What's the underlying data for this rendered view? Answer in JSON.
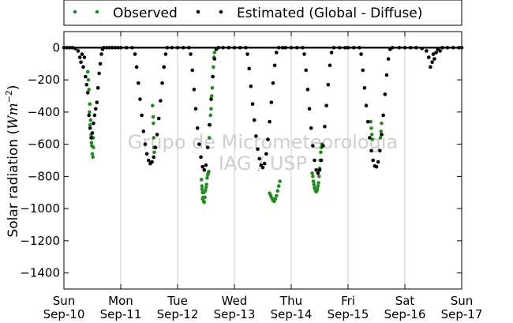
{
  "chart_data": {
    "type": "scatter",
    "title": "",
    "ylabel_main": "Solar radiation (",
    "ylabel_unit": "Wm",
    "ylabel_exp": "−2",
    "ylabel_close": ")",
    "xlabel": "",
    "ylim": [
      -1500,
      100
    ],
    "xlim": [
      0,
      7
    ],
    "yticks": [
      0,
      -200,
      -400,
      -600,
      -800,
      -1000,
      -1200,
      -1400
    ],
    "xticks": [
      {
        "x": 0,
        "day": "Sun",
        "date": "Sep-10"
      },
      {
        "x": 1,
        "day": "Mon",
        "date": "Sep-11"
      },
      {
        "x": 2,
        "day": "Tue",
        "date": "Sep-12"
      },
      {
        "x": 3,
        "day": "Wed",
        "date": "Sep-13"
      },
      {
        "x": 4,
        "day": "Thu",
        "date": "Sep-14"
      },
      {
        "x": 5,
        "day": "Fri",
        "date": "Sep-15"
      },
      {
        "x": 6,
        "day": "Sat",
        "date": "Sep-16"
      },
      {
        "x": 7,
        "day": "Sun",
        "date": "Sep-17"
      }
    ],
    "vertical_gridlines": true,
    "legend_position": "top",
    "watermark_line1": "Grupo de Micrometeorologia",
    "watermark_line2": "IAG / USP",
    "series": [
      {
        "name": "Observed",
        "color": "#228b22",
        "points": [
          [
            0.42,
            -150
          ],
          [
            0.44,
            -260
          ],
          [
            0.455,
            -350
          ],
          [
            0.47,
            -450
          ],
          [
            0.48,
            -540
          ],
          [
            0.49,
            -610
          ],
          [
            0.5,
            -660
          ],
          [
            0.51,
            -680
          ],
          [
            0.52,
            -620
          ],
          [
            0.515,
            -560
          ],
          [
            0.45,
            -400
          ],
          [
            0.43,
            -200
          ],
          [
            0.46,
            -480
          ],
          [
            0.485,
            -590
          ],
          [
            1.56,
            -360
          ],
          [
            1.57,
            -430
          ],
          [
            1.575,
            -470
          ],
          [
            1.58,
            -560
          ],
          [
            1.585,
            -620
          ],
          [
            1.59,
            -650
          ],
          [
            2.42,
            -820
          ],
          [
            2.43,
            -860
          ],
          [
            2.44,
            -900
          ],
          [
            2.45,
            -930
          ],
          [
            2.46,
            -955
          ],
          [
            2.47,
            -960
          ],
          [
            2.48,
            -930
          ],
          [
            2.49,
            -890
          ],
          [
            2.5,
            -870
          ],
          [
            2.51,
            -850
          ],
          [
            2.52,
            -810
          ],
          [
            2.53,
            -790
          ],
          [
            2.54,
            -780
          ],
          [
            2.55,
            -770
          ],
          [
            2.56,
            -560
          ],
          [
            2.57,
            -480
          ],
          [
            2.58,
            -420
          ],
          [
            2.59,
            -380
          ],
          [
            2.6,
            -300
          ],
          [
            2.61,
            -250
          ],
          [
            2.62,
            -180
          ],
          [
            2.63,
            -120
          ],
          [
            2.64,
            -60
          ],
          [
            2.65,
            -30
          ],
          [
            2.43,
            -880
          ],
          [
            2.44,
            -940
          ],
          [
            2.46,
            -900
          ],
          [
            3.62,
            -905
          ],
          [
            3.64,
            -920
          ],
          [
            3.66,
            -935
          ],
          [
            3.68,
            -950
          ],
          [
            3.7,
            -955
          ],
          [
            3.72,
            -940
          ],
          [
            3.74,
            -920
          ],
          [
            3.76,
            -890
          ],
          [
            3.78,
            -860
          ],
          [
            3.8,
            -830
          ],
          [
            4.37,
            -780
          ],
          [
            4.38,
            -800
          ],
          [
            4.39,
            -830
          ],
          [
            4.4,
            -850
          ],
          [
            4.41,
            -870
          ],
          [
            4.42,
            -880
          ],
          [
            4.43,
            -890
          ],
          [
            4.44,
            -895
          ],
          [
            4.45,
            -890
          ],
          [
            4.46,
            -880
          ],
          [
            4.47,
            -860
          ],
          [
            4.48,
            -840
          ],
          [
            4.49,
            -800
          ],
          [
            4.5,
            -750
          ],
          [
            4.51,
            -700
          ],
          [
            4.52,
            -650
          ],
          [
            4.53,
            -620
          ],
          [
            4.54,
            -600
          ],
          [
            5.4,
            -460
          ],
          [
            5.41,
            -500
          ],
          [
            5.42,
            -540
          ],
          [
            5.43,
            -570
          ],
          [
            5.57,
            -560
          ],
          [
            5.58,
            -520
          ],
          [
            5.59,
            -470
          ]
        ]
      },
      {
        "name": "Estimated (Global - Diffuse)",
        "color": "#000000",
        "points": [
          [
            0.0,
            0
          ],
          [
            0.05,
            0
          ],
          [
            0.1,
            0
          ],
          [
            0.15,
            0
          ],
          [
            0.2,
            -5
          ],
          [
            0.25,
            -20
          ],
          [
            0.28,
            -60
          ],
          [
            0.3,
            -90
          ],
          [
            0.32,
            -40
          ],
          [
            0.34,
            -120
          ],
          [
            0.36,
            -60
          ],
          [
            0.38,
            -180
          ],
          [
            0.4,
            -230
          ],
          [
            0.42,
            -280
          ],
          [
            0.44,
            -420
          ],
          [
            0.46,
            -500
          ],
          [
            0.48,
            -560
          ],
          [
            0.5,
            -530
          ],
          [
            0.52,
            -470
          ],
          [
            0.54,
            -420
          ],
          [
            0.56,
            -380
          ],
          [
            0.58,
            -340
          ],
          [
            0.6,
            -250
          ],
          [
            0.62,
            -160
          ],
          [
            0.64,
            -100
          ],
          [
            0.66,
            -40
          ],
          [
            0.68,
            -10
          ],
          [
            0.7,
            0
          ],
          [
            0.75,
            0
          ],
          [
            0.8,
            0
          ],
          [
            0.85,
            0
          ],
          [
            0.9,
            0
          ],
          [
            0.95,
            0
          ],
          [
            1.0,
            0
          ],
          [
            1.1,
            0
          ],
          [
            1.2,
            0
          ],
          [
            1.25,
            -40
          ],
          [
            1.28,
            -120
          ],
          [
            1.31,
            -220
          ],
          [
            1.34,
            -320
          ],
          [
            1.37,
            -420
          ],
          [
            1.4,
            -520
          ],
          [
            1.43,
            -600
          ],
          [
            1.46,
            -660
          ],
          [
            1.49,
            -700
          ],
          [
            1.52,
            -720
          ],
          [
            1.55,
            -710
          ],
          [
            1.58,
            -680
          ],
          [
            1.61,
            -620
          ],
          [
            1.64,
            -540
          ],
          [
            1.67,
            -440
          ],
          [
            1.7,
            -330
          ],
          [
            1.73,
            -220
          ],
          [
            1.76,
            -120
          ],
          [
            1.79,
            -40
          ],
          [
            1.82,
            0
          ],
          [
            1.9,
            0
          ],
          [
            2.0,
            0
          ],
          [
            2.1,
            0
          ],
          [
            2.2,
            0
          ],
          [
            2.23,
            -40
          ],
          [
            2.26,
            -140
          ],
          [
            2.29,
            -260
          ],
          [
            2.32,
            -380
          ],
          [
            2.35,
            -500
          ],
          [
            2.38,
            -600
          ],
          [
            2.41,
            -680
          ],
          [
            2.44,
            -740
          ],
          [
            2.47,
            -760
          ],
          [
            2.5,
            -730
          ],
          [
            2.53,
            -620
          ],
          [
            2.56,
            -480
          ],
          [
            2.59,
            -320
          ],
          [
            2.62,
            -180
          ],
          [
            2.65,
            -70
          ],
          [
            2.68,
            -10
          ],
          [
            2.72,
            0
          ],
          [
            2.8,
            0
          ],
          [
            2.9,
            0
          ],
          [
            3.0,
            0
          ],
          [
            3.1,
            0
          ],
          [
            3.2,
            0
          ],
          [
            3.23,
            -40
          ],
          [
            3.26,
            -130
          ],
          [
            3.29,
            -240
          ],
          [
            3.32,
            -350
          ],
          [
            3.35,
            -450
          ],
          [
            3.38,
            -550
          ],
          [
            3.41,
            -630
          ],
          [
            3.44,
            -690
          ],
          [
            3.47,
            -730
          ],
          [
            3.5,
            -745
          ],
          [
            3.53,
            -720
          ],
          [
            3.56,
            -660
          ],
          [
            3.59,
            -570
          ],
          [
            3.62,
            -460
          ],
          [
            3.65,
            -340
          ],
          [
            3.68,
            -220
          ],
          [
            3.71,
            -110
          ],
          [
            3.74,
            -30
          ],
          [
            3.78,
            0
          ],
          [
            3.85,
            0
          ],
          [
            3.9,
            0
          ],
          [
            4.0,
            0
          ],
          [
            4.1,
            0
          ],
          [
            4.2,
            0
          ],
          [
            4.23,
            -40
          ],
          [
            4.26,
            -140
          ],
          [
            4.29,
            -260
          ],
          [
            4.32,
            -380
          ],
          [
            4.35,
            -500
          ],
          [
            4.38,
            -610
          ],
          [
            4.41,
            -700
          ],
          [
            4.44,
            -760
          ],
          [
            4.47,
            -780
          ],
          [
            4.5,
            -760
          ],
          [
            4.53,
            -700
          ],
          [
            4.56,
            -610
          ],
          [
            4.59,
            -490
          ],
          [
            4.62,
            -360
          ],
          [
            4.65,
            -230
          ],
          [
            4.68,
            -110
          ],
          [
            4.71,
            -30
          ],
          [
            4.75,
            0
          ],
          [
            4.85,
            0
          ],
          [
            4.95,
            0
          ],
          [
            5.0,
            0
          ],
          [
            5.1,
            0
          ],
          [
            5.2,
            0
          ],
          [
            5.23,
            -40
          ],
          [
            5.26,
            -140
          ],
          [
            5.29,
            -250
          ],
          [
            5.32,
            -360
          ],
          [
            5.35,
            -460
          ],
          [
            5.38,
            -560
          ],
          [
            5.41,
            -640
          ],
          [
            5.44,
            -700
          ],
          [
            5.47,
            -735
          ],
          [
            5.5,
            -740
          ],
          [
            5.53,
            -710
          ],
          [
            5.56,
            -640
          ],
          [
            5.59,
            -540
          ],
          [
            5.62,
            -420
          ],
          [
            5.65,
            -290
          ],
          [
            5.68,
            -170
          ],
          [
            5.71,
            -70
          ],
          [
            5.74,
            -10
          ],
          [
            5.78,
            0
          ],
          [
            5.9,
            0
          ],
          [
            6.0,
            0
          ],
          [
            6.1,
            0
          ],
          [
            6.2,
            0
          ],
          [
            6.3,
            -5
          ],
          [
            6.38,
            -20
          ],
          [
            6.42,
            -60
          ],
          [
            6.45,
            -120
          ],
          [
            6.48,
            -90
          ],
          [
            6.5,
            -40
          ],
          [
            6.52,
            -70
          ],
          [
            6.55,
            -30
          ],
          [
            6.58,
            -10
          ],
          [
            6.62,
            -20
          ],
          [
            6.66,
            0
          ],
          [
            6.75,
            0
          ],
          [
            6.85,
            0
          ],
          [
            6.95,
            0
          ],
          [
            7.0,
            0
          ]
        ]
      }
    ]
  }
}
